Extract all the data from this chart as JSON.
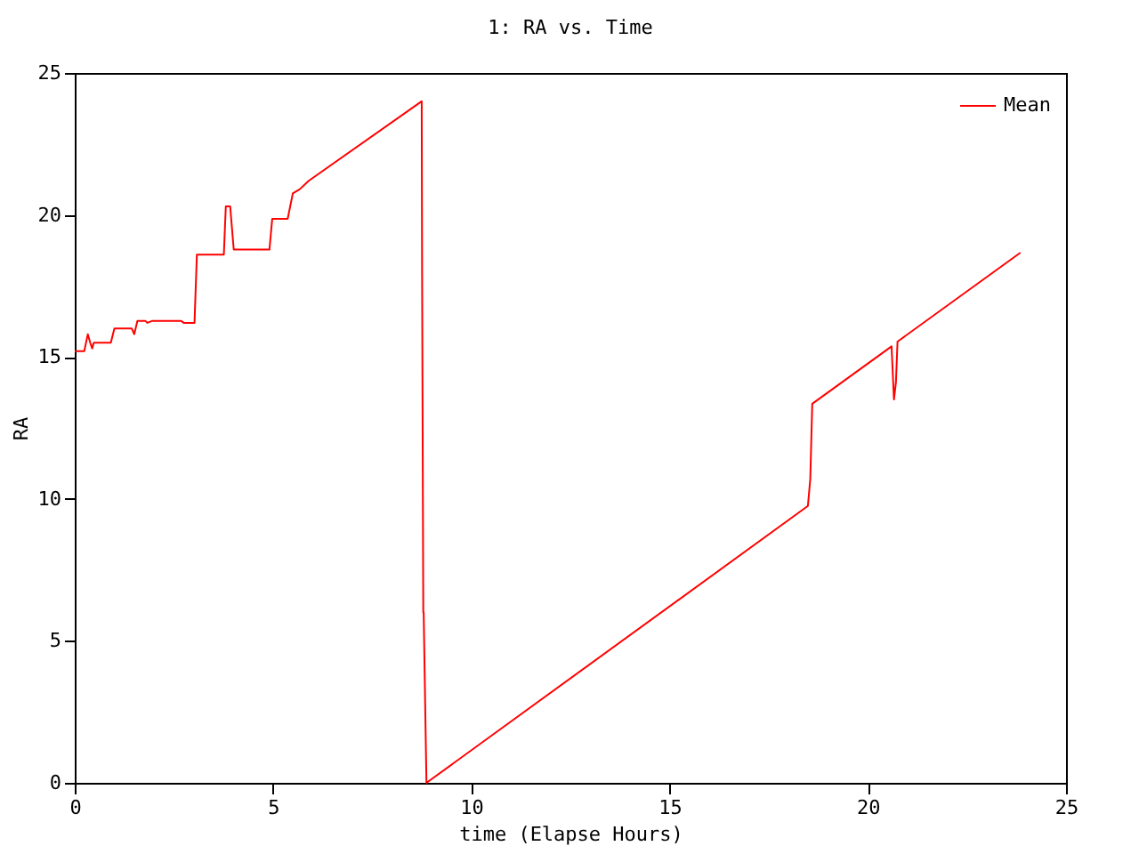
{
  "chart_data": {
    "type": "line",
    "title": "1: RA vs. Time",
    "xlabel": "time (Elapse Hours)",
    "ylabel": "RA",
    "xlim": [
      0,
      25
    ],
    "xticks": [
      0,
      5,
      10,
      15,
      20,
      25
    ],
    "ylim": [
      0,
      25
    ],
    "yticks": [
      0,
      5,
      10,
      15,
      20,
      25
    ],
    "grid": false,
    "legend": "top right",
    "marker": "none",
    "line_style": "solid",
    "series": [
      {
        "name": "Mean",
        "color": "#ff0000",
        "x": [
          0,
          0.24,
          0.33,
          0.39,
          0.44,
          0.48,
          0.91,
          1.0,
          1.44,
          1.5,
          1.58,
          1.78,
          1.83,
          1.96,
          2.68,
          2.75,
          3.02,
          3.08,
          3.76,
          3.81,
          3.92,
          4.01,
          4.91,
          4.98,
          5.37,
          5.5,
          5.67,
          5.9,
          8.75,
          8.76,
          8.79,
          8.8,
          8.87,
          18.49,
          18.55,
          18.6,
          20.6,
          20.66,
          20.71,
          20.75,
          23.85
        ],
        "values": [
          15.2,
          15.2,
          15.8,
          15.5,
          15.3,
          15.5,
          15.5,
          16.0,
          16.0,
          15.8,
          16.27,
          16.27,
          16.2,
          16.27,
          16.27,
          16.2,
          16.2,
          18.6,
          18.6,
          20.3,
          20.3,
          18.78,
          18.78,
          19.86,
          19.86,
          20.76,
          20.9,
          21.2,
          24.0,
          18.0,
          6.0,
          6.0,
          0,
          9.75,
          10.7,
          13.35,
          15.37,
          13.5,
          14.1,
          15.54,
          18.67
        ]
      }
    ]
  }
}
